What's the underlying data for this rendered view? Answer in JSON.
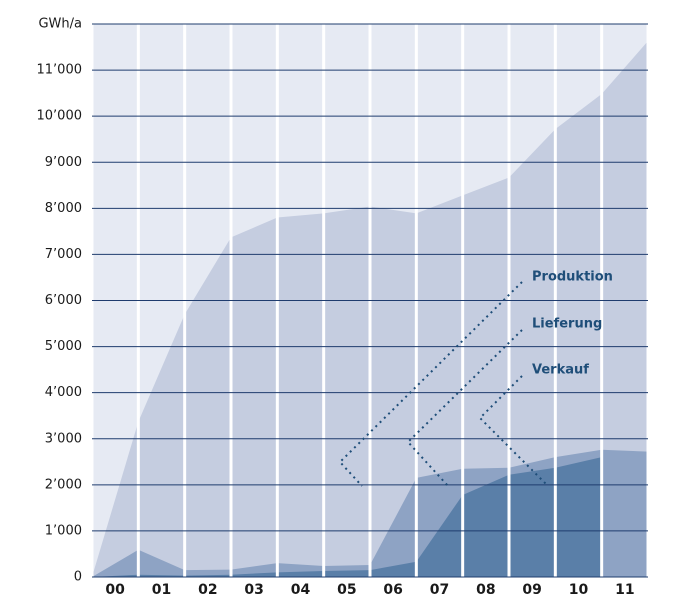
{
  "chart_data": {
    "type": "area",
    "categories": [
      "00",
      "01",
      "02",
      "03",
      "04",
      "05",
      "06",
      "07",
      "08",
      "09",
      "10",
      "11"
    ],
    "series": [
      {
        "name": "Produktion",
        "color": "#c5cde0",
        "values": [
          3370,
          5700,
          7370,
          7800,
          7890,
          8040,
          7890,
          8280,
          8670,
          9720,
          10480,
          11630
        ]
      },
      {
        "name": "Lieferung",
        "color": "#8ea3c4",
        "values": [
          590,
          150,
          160,
          300,
          240,
          260,
          2150,
          2350,
          2370,
          2600,
          2760,
          2720
        ]
      },
      {
        "name": "Verkauf",
        "color": "#5a7fa8",
        "values": [
          50,
          30,
          50,
          100,
          130,
          150,
          330,
          1780,
          2220,
          2370,
          2600,
          null
        ]
      }
    ],
    "ylim": [
      0,
      12000
    ],
    "yticks": [
      0,
      {
        "value": 1000,
        "label": "1’000"
      },
      {
        "value": 2000,
        "label": "2’000"
      },
      {
        "value": 3000,
        "label": "3’000"
      },
      {
        "value": 4000,
        "label": "4’000"
      },
      {
        "value": 5000,
        "label": "5’000"
      },
      {
        "value": 6000,
        "label": "6’000"
      },
      {
        "value": 7000,
        "label": "7’000"
      },
      {
        "value": 8000,
        "label": "8’000"
      },
      {
        "value": 9000,
        "label": "9’000"
      },
      {
        "value": 10000,
        "label": "10’000"
      },
      {
        "value": 11000,
        "label": "11’000"
      },
      {
        "value": 12000,
        "label": "GWh/a"
      }
    ],
    "background": "#e6eaf3",
    "grid_color": "#1f3c6e",
    "grid": true
  }
}
